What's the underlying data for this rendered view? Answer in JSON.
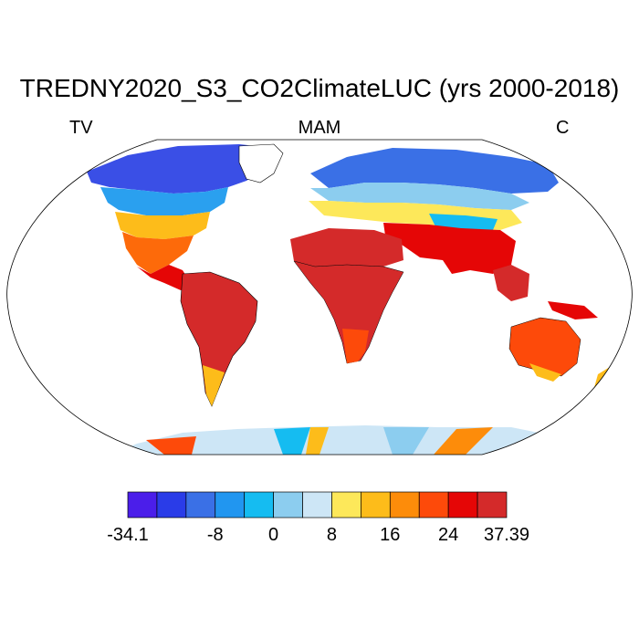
{
  "title": "TREDNY2020_S3_CO2ClimateLUC (yrs 2000-2018)",
  "left_label": "TV",
  "center_label": "MAM",
  "right_label": "C",
  "colorbar": {
    "colors": [
      "#4b1eea",
      "#2a3ce8",
      "#3a70e6",
      "#2196f0",
      "#15bcf1",
      "#8ccdef",
      "#cde6f6",
      "#fde85a",
      "#fdbc1a",
      "#fd8c0a",
      "#fd4a0a",
      "#e50606",
      "#d42a2a"
    ],
    "labels": [
      "-34.1",
      "-8",
      "0",
      "8",
      "16",
      "24",
      "37.39"
    ]
  },
  "map": {
    "projection": "Robinson",
    "variable_palette": "blue (negative) to red (positive)"
  }
}
